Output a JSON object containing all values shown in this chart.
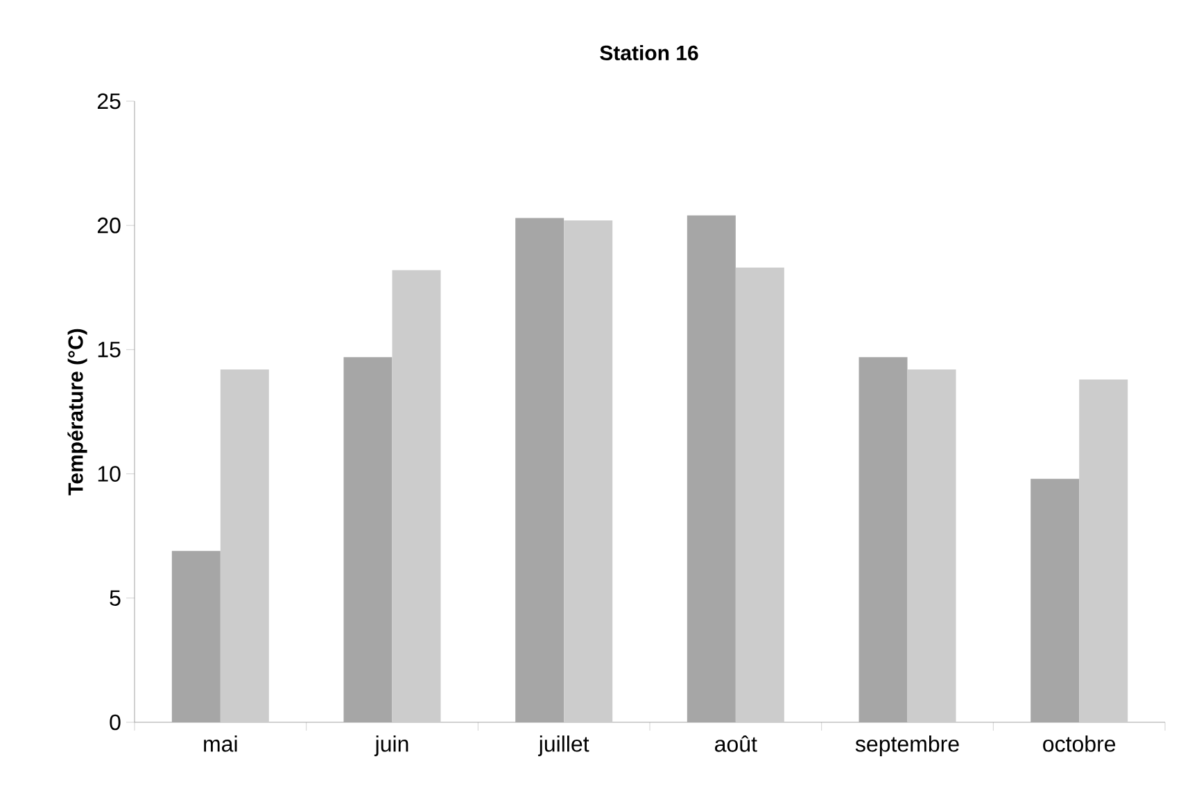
{
  "chart_data": {
    "type": "bar",
    "title": "Station 16",
    "ylabel": "Température (°C)",
    "categories": [
      "mai",
      "juin",
      "juillet",
      "août",
      "septembre",
      "octobre"
    ],
    "series": [
      {
        "color": "#a6a6a6",
        "values": [
          6.9,
          14.7,
          20.3,
          20.4,
          14.7,
          9.8
        ]
      },
      {
        "color": "#cccccc",
        "values": [
          14.2,
          18.2,
          20.2,
          18.3,
          14.2,
          13.8
        ]
      }
    ],
    "ylim": [
      0,
      25
    ],
    "yticks": [
      0,
      5,
      10,
      15,
      20,
      25
    ]
  }
}
